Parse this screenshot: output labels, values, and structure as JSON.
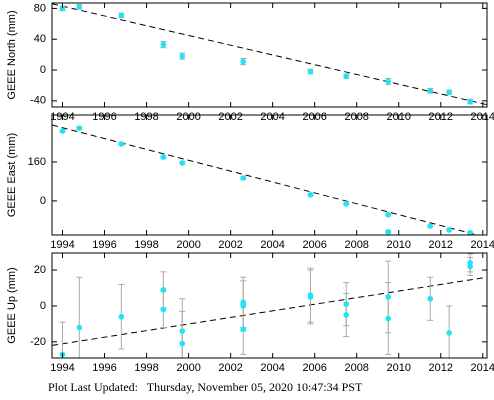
{
  "chart_data": [
    {
      "type": "scatter",
      "ylabel": "GEEE North (mm)",
      "color": "#1ee4f5",
      "error_color": "#aaaaaa",
      "x": [
        1994.0,
        1994.8,
        1996.8,
        1998.8,
        1999.7,
        2002.6,
        2005.8,
        2007.5,
        2009.5,
        2011.5,
        2012.4,
        2013.4
      ],
      "values": [
        80,
        82,
        71,
        33,
        18,
        11,
        -2,
        -8,
        -15,
        -27,
        -29,
        -41
      ],
      "errors": [
        3,
        3,
        3,
        4,
        4,
        4,
        3,
        3,
        4,
        3,
        3,
        3
      ],
      "trend": {
        "x": [
          1993.5,
          2014.2
        ],
        "values": [
          86,
          -45
        ]
      },
      "xlim": [
        1993.5,
        2014.2
      ],
      "ylim": [
        -48,
        87
      ],
      "xticks": [
        1994,
        1996,
        1998,
        2000,
        2002,
        2004,
        2006,
        2008,
        2010,
        2012,
        2014
      ],
      "yticks": [
        -40,
        0,
        40,
        80
      ]
    },
    {
      "type": "scatter",
      "ylabel": "GEEE East (mm)",
      "color": "#1ee4f5",
      "error_color": "#aaaaaa",
      "x": [
        1994.0,
        1994.8,
        1996.8,
        1998.8,
        1999.7,
        2002.6,
        2005.8,
        2007.5,
        2009.5,
        2009.5,
        2011.5,
        2012.4,
        2013.4
      ],
      "values": [
        287,
        299,
        234,
        180,
        156,
        94,
        25,
        -12,
        -57,
        -127,
        -103,
        -119,
        -131
      ],
      "errors": [
        4,
        4,
        4,
        5,
        5,
        5,
        4,
        4,
        5,
        5,
        4,
        4,
        4
      ],
      "trend": {
        "x": [
          1993.5,
          2014.2
        ],
        "values": [
          312,
          -150
        ]
      },
      "xlim": [
        1993.5,
        2014.2
      ],
      "ylim": [
        -140,
        353
      ],
      "xticks": [
        1994,
        1996,
        1998,
        2000,
        2002,
        2004,
        2006,
        2008,
        2010,
        2012,
        2014
      ],
      "yticks": [
        0,
        160
      ]
    },
    {
      "type": "scatter",
      "ylabel": "GEEE Up (mm)",
      "color": "#1ee4f5",
      "error_color": "#aaaaaa",
      "x": [
        1994.0,
        1994.8,
        1996.8,
        1998.8,
        1998.8,
        1999.7,
        1999.7,
        2002.6,
        2002.6,
        2002.6,
        2005.8,
        2005.8,
        2007.5,
        2007.5,
        2009.5,
        2009.5,
        2011.5,
        2012.4,
        2013.4,
        2013.4
      ],
      "values": [
        -27,
        -12,
        -6,
        9,
        -2,
        -14,
        -21,
        2,
        0,
        -13,
        6,
        5,
        1,
        -5,
        5,
        -7,
        4,
        -15,
        24,
        22
      ],
      "errors": [
        18,
        28,
        18,
        10,
        10,
        18,
        18,
        14,
        14,
        14,
        15,
        15,
        12,
        12,
        20,
        20,
        12,
        15,
        5,
        5
      ],
      "trend": {
        "x": [
          1993.5,
          2014.2
        ],
        "values": [
          -22,
          16
        ]
      },
      "xlim": [
        1993.5,
        2014.2
      ],
      "ylim": [
        -29,
        29.5
      ],
      "xticks": [
        1994,
        1996,
        1998,
        2000,
        2002,
        2004,
        2006,
        2008,
        2010,
        2012,
        2014
      ],
      "yticks": [
        -20,
        0,
        20
      ]
    }
  ],
  "footer": "Plot Last Updated:   Thursday, November 05, 2020 10:47:34 PST"
}
